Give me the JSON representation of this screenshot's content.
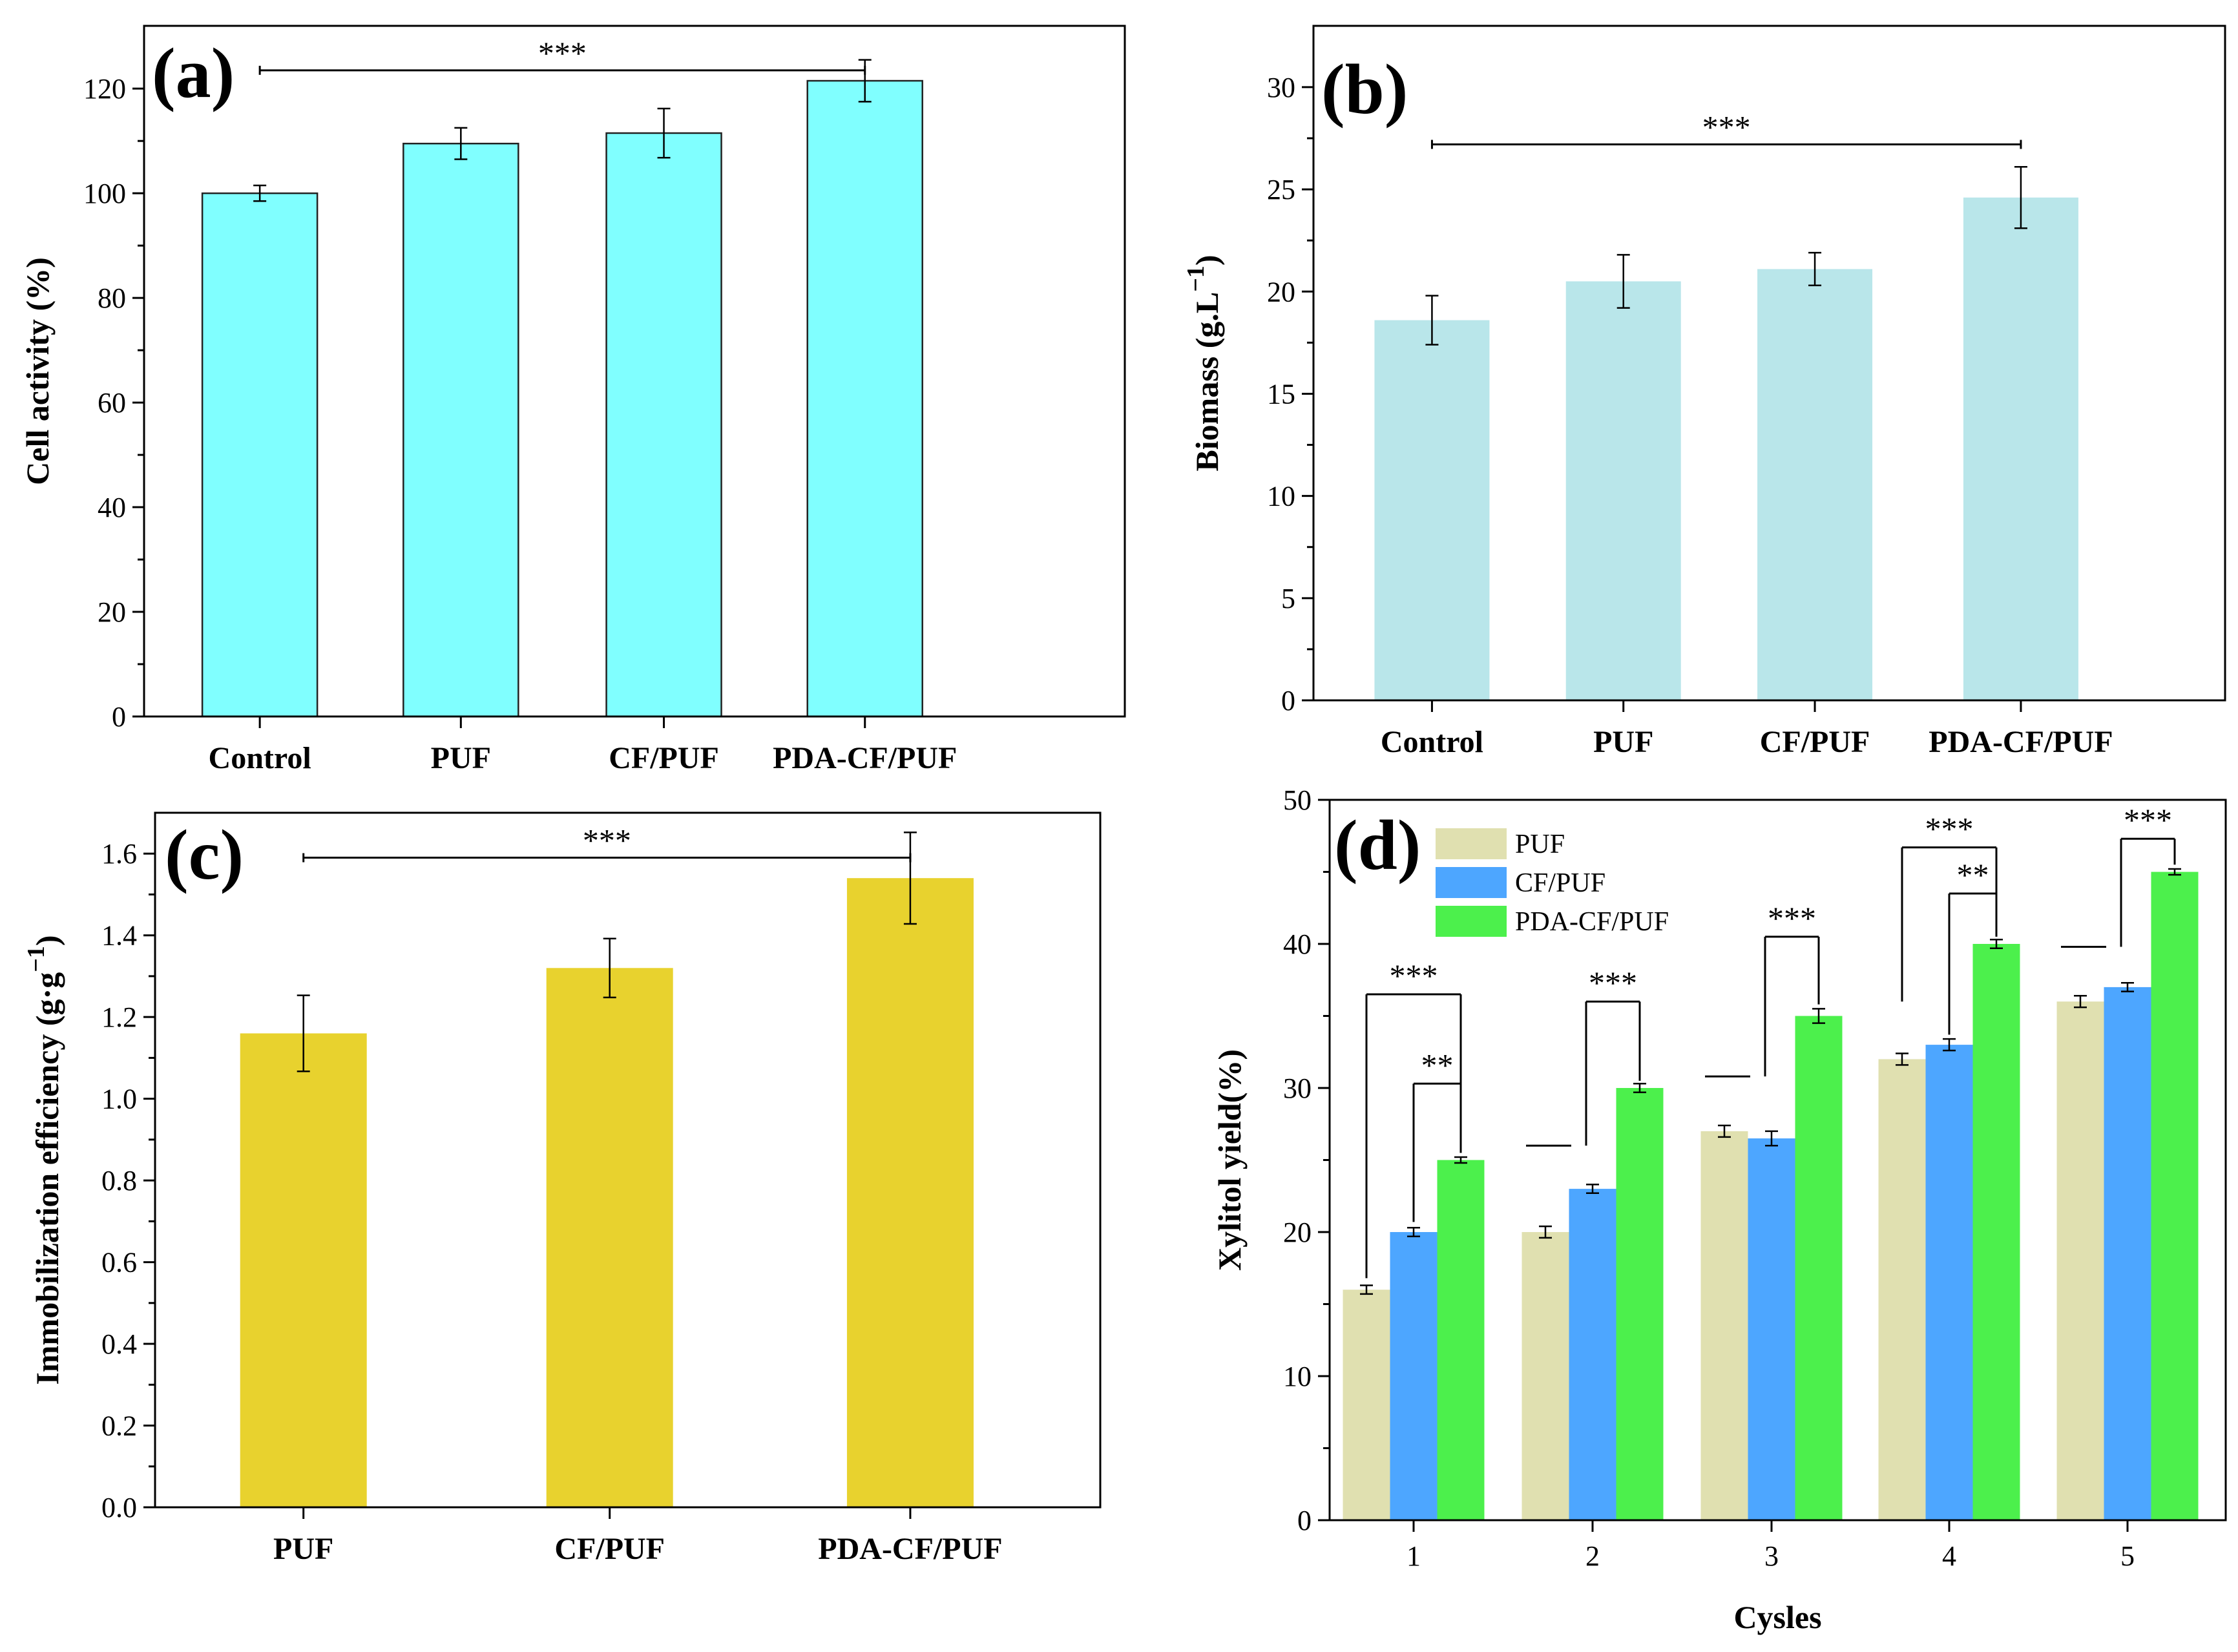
{
  "chart_data": [
    {
      "panel": "(a)",
      "type": "bar",
      "categories": [
        "Control",
        "PUF",
        "CF/PUF",
        "PDA-CF/PUF"
      ],
      "values": [
        100,
        109.5,
        111.5,
        121.5
      ],
      "errors": [
        1.5,
        3,
        4.7,
        4
      ],
      "xlabel": "",
      "ylabel": "Cell activity (%)",
      "ylim": [
        0,
        132
      ],
      "yticks": [
        0,
        20,
        40,
        60,
        80,
        100,
        120
      ],
      "color": "#80ffff",
      "significance": [
        {
          "from": 0,
          "to": 3,
          "label": "***",
          "y": 123.5
        }
      ]
    },
    {
      "panel": "(b)",
      "type": "bar",
      "categories": [
        "Control",
        "PUF",
        "CF/PUF",
        "PDA-CF/PUF"
      ],
      "values": [
        18.6,
        20.5,
        21.1,
        24.6
      ],
      "errors": [
        1.2,
        1.3,
        0.8,
        1.5
      ],
      "xlabel": "",
      "ylabel": "Biomass (g.L",
      "ylabel_sup": "−1",
      "ylabel_end": ")",
      "ylim": [
        0,
        33
      ],
      "yticks": [
        0,
        5,
        10,
        15,
        20,
        25,
        30
      ],
      "color": "#b9e6ea",
      "significance": [
        {
          "from": 0,
          "to": 3,
          "label": "***",
          "y": 27.2
        }
      ]
    },
    {
      "panel": "(c)",
      "type": "bar",
      "categories": [
        "PUF",
        "CF/PUF",
        "PDA-CF/PUF"
      ],
      "values": [
        1.16,
        1.32,
        1.54
      ],
      "errors": [
        0.093,
        0.072,
        0.112
      ],
      "xlabel": "",
      "ylabel": "Immobilization efficiency (g·g",
      "ylabel_sup": "−1",
      "ylabel_end": ")",
      "ylim": [
        0,
        1.7
      ],
      "yticks": [
        "0.0",
        "0.2",
        "0.4",
        "0.6",
        "0.8",
        "1.0",
        "1.2",
        "1.4",
        "1.6"
      ],
      "color": "#e8d22e",
      "significance": [
        {
          "from": 0,
          "to": 2,
          "label": "***",
          "y": 1.59
        }
      ]
    },
    {
      "panel": "(d)",
      "type": "bar",
      "categories": [
        "1",
        "2",
        "3",
        "4",
        "5"
      ],
      "series": [
        {
          "name": "PUF",
          "values": [
            16,
            20,
            27,
            32,
            36
          ],
          "errors": [
            0.3,
            0.4,
            0.4,
            0.4,
            0.4
          ],
          "color": "#e0e0b0"
        },
        {
          "name": "CF/PUF",
          "values": [
            20,
            23,
            26.5,
            33,
            37
          ],
          "errors": [
            0.3,
            0.3,
            0.5,
            0.4,
            0.3
          ],
          "color": "#4da6ff"
        },
        {
          "name": "PDA-CF/PUF",
          "values": [
            25,
            30,
            35,
            40,
            45
          ],
          "errors": [
            0.2,
            0.3,
            0.5,
            0.3,
            0.2
          ],
          "color": "#4cf04c"
        }
      ],
      "xlabel": "Cysles",
      "ylabel": "Xylitol yield(%)",
      "ylim": [
        0,
        50
      ],
      "yticks": [
        0,
        10,
        20,
        30,
        40,
        50
      ],
      "legend_position": "top-left",
      "significance": [
        {
          "cycle": 0,
          "from": 0,
          "to": 2,
          "label": "***",
          "top": 36.5,
          "left_end": 16.8,
          "right_end": 25.5
        },
        {
          "cycle": 0,
          "from": 1,
          "to": 2,
          "label": "**",
          "top": 30.3,
          "left_end": 20.7,
          "right_end": 25.5
        },
        {
          "cycle": 1,
          "from": 0,
          "to": 2,
          "label": "***",
          "top": 36,
          "left_end": 26,
          "right_end": 30.5,
          "left_stub": true
        },
        {
          "cycle": 2,
          "from": 0,
          "to": 2,
          "label": "***",
          "top": 40.5,
          "left_end": 30.8,
          "right_end": 35.8,
          "left_stub": true
        },
        {
          "cycle": 3,
          "from": 0,
          "to": 2,
          "label": "***",
          "top": 46.7,
          "left_end": 36,
          "right_end": 41.2
        },
        {
          "cycle": 3,
          "from": 1,
          "to": 2,
          "label": "**",
          "top": 43.5,
          "left_end": 33.7,
          "right_end": 40.5
        },
        {
          "cycle": 4,
          "from": 0,
          "to": 2,
          "label": "***",
          "top": 47.3,
          "left_end": 39.8,
          "right_end": 45.5,
          "left_stub": true
        }
      ]
    }
  ]
}
